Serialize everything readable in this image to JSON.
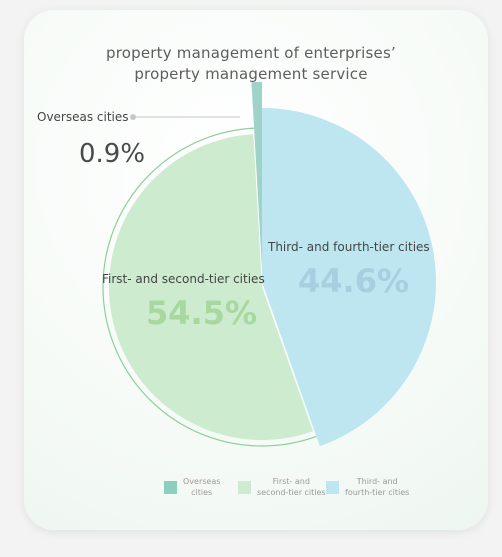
{
  "chart_data": {
    "type": "pie",
    "title": "property management of enterprises’ property management service",
    "title_lines": [
      "property management of enterprises’",
      "property management service"
    ],
    "slices": [
      {
        "label": "Overseas cities",
        "value": 0.9,
        "display": "0.9%",
        "color": "#9fd3c7",
        "legend_lines": [
          "Overseas",
          "cities"
        ]
      },
      {
        "label": "First- and second-tier cities",
        "value": 54.5,
        "display": "54.5%",
        "color": "#ccebcf",
        "legend_lines": [
          "First- and",
          "second-tier cities"
        ]
      },
      {
        "label": "Third- and fourth-tier cities",
        "value": 44.6,
        "display": "44.6%",
        "color": "#bde6f0",
        "legend_lines": [
          "Third- and",
          "fourth-tier cities"
        ]
      }
    ],
    "value_colors": {
      "Overseas cities": "#4a4a4a",
      "First- and second-tier cities": "#a8d8a0",
      "Third- and fourth-tier cities": "#a7cfe0"
    }
  }
}
